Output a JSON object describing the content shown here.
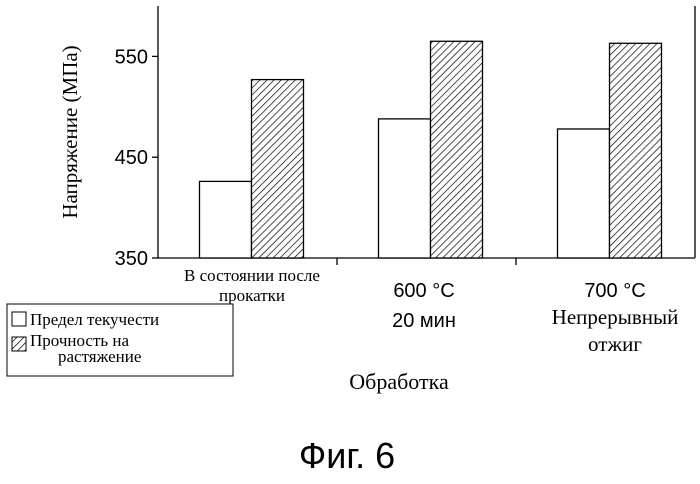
{
  "chart_data": {
    "type": "bar",
    "ylabel": "Напряжение (МПа)",
    "xlabel": "Обработка",
    "ylim": [
      350,
      600
    ],
    "yticks": [
      350,
      450,
      550
    ],
    "categories": [
      {
        "lines": [
          "В состоянии после",
          "прокатки"
        ]
      },
      {
        "lines": [
          "600 °C",
          "20  мин"
        ]
      },
      {
        "lines": [
          "700 °C",
          "Непрерывный",
          "отжиг"
        ]
      }
    ],
    "series": [
      {
        "name": "Предел текучести",
        "fill": "white",
        "values": [
          426,
          488,
          478
        ]
      },
      {
        "name": "Прочность на растяжение",
        "fill": "hatched",
        "values": [
          527,
          565,
          563
        ]
      }
    ],
    "legend": {
      "items": [
        {
          "lines": [
            "Предел текучести"
          ]
        },
        {
          "lines": [
            "Прочность на",
            "растяжение"
          ]
        }
      ]
    }
  },
  "figure_caption": "Фиг. 6",
  "colors": {
    "ink": "#000000",
    "paper": "#ffffff"
  }
}
